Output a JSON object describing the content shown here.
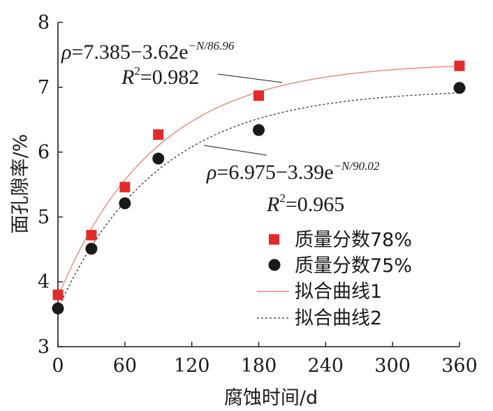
{
  "chart_data": {
    "type": "scatter",
    "xlabel": "腐蚀时间/d",
    "ylabel": "面孔隙率/%",
    "xlim": [
      0,
      360
    ],
    "ylim": [
      3,
      8
    ],
    "xticks": [
      0,
      60,
      120,
      180,
      240,
      300,
      360
    ],
    "yticks": [
      3,
      4,
      5,
      6,
      7,
      8
    ],
    "series": [
      {
        "name": "质量分数78%",
        "marker": "square",
        "color": "#e32b2b",
        "x": [
          0,
          30,
          60,
          90,
          180,
          360
        ],
        "y": [
          3.8,
          4.72,
          5.46,
          6.27,
          6.87,
          7.33
        ]
      },
      {
        "name": "质量分数75%",
        "marker": "circle",
        "color": "#1a1a1a",
        "x": [
          0,
          30,
          60,
          90,
          180,
          360
        ],
        "y": [
          3.59,
          4.51,
          5.21,
          5.9,
          6.34,
          6.99
        ]
      }
    ],
    "fits": [
      {
        "name": "拟合曲线1",
        "style": "solid",
        "color": "#e88a7a",
        "a": 7.385,
        "b": 3.62,
        "c": 86.96,
        "equation": {
          "lhs": "ρ",
          "body": "=7.385−3.62e",
          "sup": "−N/86.96"
        },
        "r2": {
          "lhs": "R",
          "sup": "2",
          "body": "=0.982"
        }
      },
      {
        "name": "拟合曲线2",
        "style": "dashed",
        "color": "#333333",
        "a": 6.975,
        "b": 3.39,
        "c": 90.02,
        "equation": {
          "lhs": "ρ",
          "body": "=6.975−3.39e",
          "sup": "−N/90.02"
        },
        "r2": {
          "lhs": "R",
          "sup": "2",
          "body": "=0.965"
        }
      }
    ],
    "legend_position": "bottom-right",
    "grid": false
  }
}
